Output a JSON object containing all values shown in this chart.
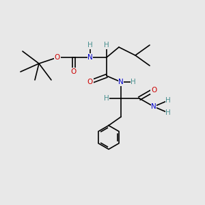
{
  "bg_color": "#e8e8e8",
  "N_col": "#0000cd",
  "O_col": "#cc0000",
  "H_col": "#4a9090",
  "bond_col": "#000000",
  "fs": 7.5,
  "xlim": [
    0,
    10
  ],
  "ylim": [
    0,
    10
  ]
}
